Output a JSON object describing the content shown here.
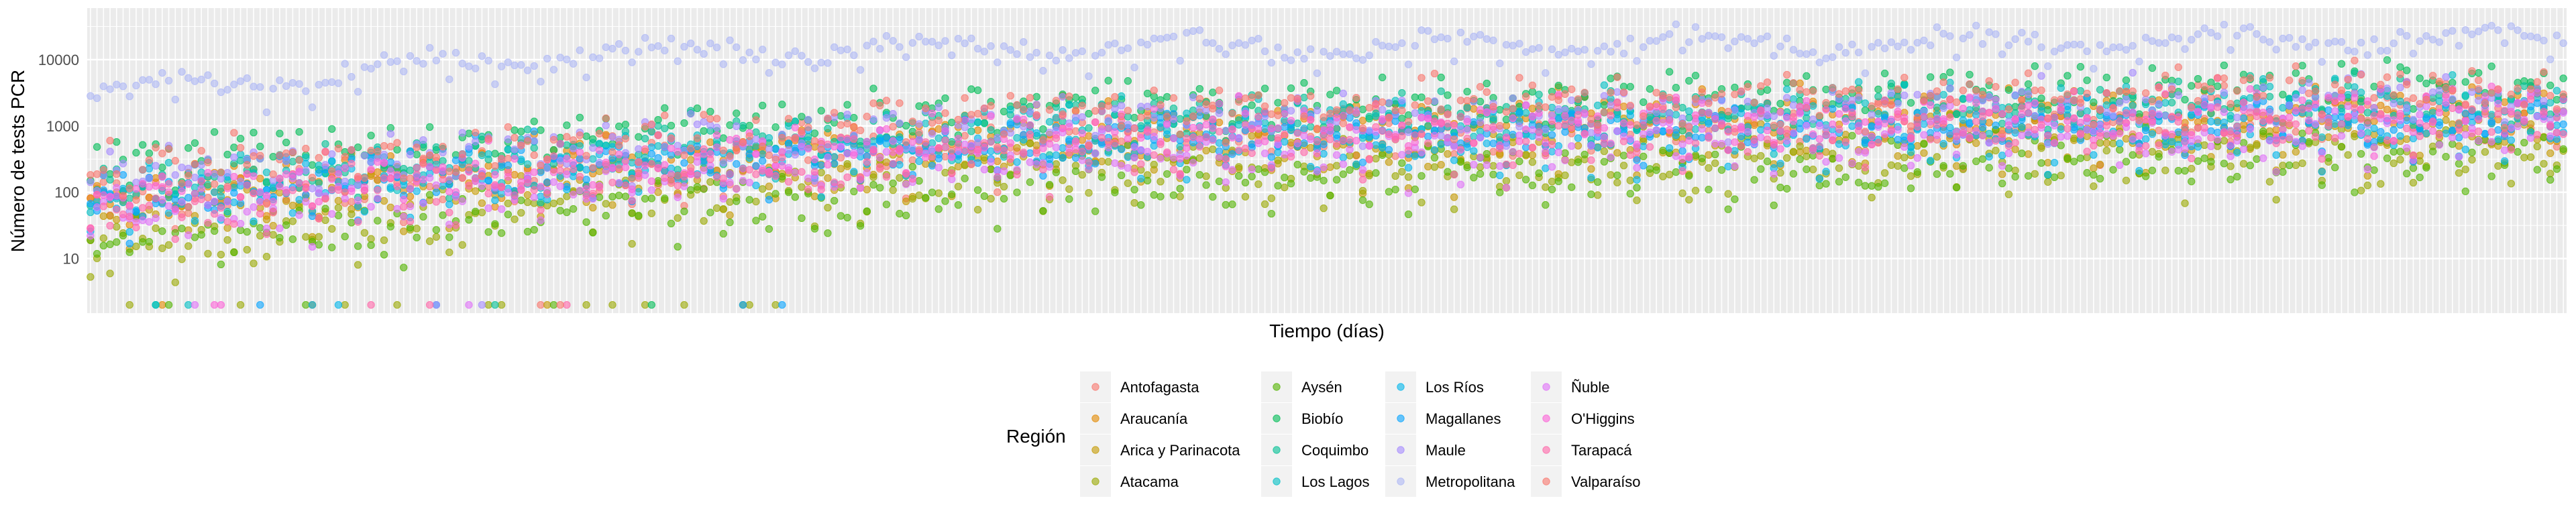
{
  "chart_data": {
    "type": "scatter",
    "title": "",
    "xlabel": "Tiempo (días)",
    "ylabel": "Número de tests PCR",
    "yscale": "log10",
    "ylim": [
      1.5,
      60000
    ],
    "yticks": [
      10,
      100,
      1000,
      10000
    ],
    "ytick_labels": [
      "10",
      "100",
      "1000",
      "10000"
    ],
    "x_tick_labels_visible": false,
    "n_days": 380,
    "grid": true,
    "legend_title": "Región",
    "legend_position": "bottom",
    "series": [
      {
        "name": "Antofagasta",
        "color": "#F8766D",
        "start": 80,
        "end": 2000,
        "ramp": 0.45,
        "spread": 0.28,
        "drops": 1
      },
      {
        "name": "Araucanía",
        "color": "#E38900",
        "start": 110,
        "end": 2300,
        "ramp": 0.4,
        "spread": 0.26,
        "drops": 2
      },
      {
        "name": "Arica y Parinacota",
        "color": "#C49A00",
        "start": 60,
        "end": 900,
        "ramp": 0.45,
        "spread": 0.26,
        "drops": 1
      },
      {
        "name": "Atacama",
        "color": "#99A800",
        "start": 15,
        "end": 500,
        "ramp": 0.35,
        "spread": 0.32,
        "drops": 14
      },
      {
        "name": "Aysén",
        "color": "#53B400",
        "start": 20,
        "end": 400,
        "ramp": 0.4,
        "spread": 0.3,
        "drops": 3
      },
      {
        "name": "Biobío",
        "color": "#00BC56",
        "start": 300,
        "end": 5000,
        "ramp": 0.4,
        "spread": 0.22,
        "drops": 1
      },
      {
        "name": "Coquimbo",
        "color": "#00C094",
        "start": 150,
        "end": 3000,
        "ramp": 0.4,
        "spread": 0.24,
        "drops": 2
      },
      {
        "name": "Los Lagos",
        "color": "#00BFC4",
        "start": 120,
        "end": 2800,
        "ramp": 0.4,
        "spread": 0.26,
        "drops": 2
      },
      {
        "name": "Los Ríos",
        "color": "#00B6EB",
        "start": 80,
        "end": 1100,
        "ramp": 0.4,
        "spread": 0.26,
        "drops": 3
      },
      {
        "name": "Magallanes",
        "color": "#06A4FF",
        "start": 100,
        "end": 1500,
        "ramp": 0.4,
        "spread": 0.28,
        "drops": 3
      },
      {
        "name": "Maule",
        "color": "#A58AFF",
        "start": 200,
        "end": 3000,
        "ramp": 0.4,
        "spread": 0.24,
        "drops": 2
      },
      {
        "name": "Metropolitana",
        "color": "#ADB7F5",
        "start": 3000,
        "end": 22000,
        "ramp": 0.2,
        "spread": 0.14,
        "drops": 0
      },
      {
        "name": "Ñuble",
        "color": "#DF70F8",
        "start": 50,
        "end": 1100,
        "ramp": 0.4,
        "spread": 0.28,
        "drops": 2
      },
      {
        "name": "O'Higgins",
        "color": "#FB61D7",
        "start": 100,
        "end": 2200,
        "ramp": 0.4,
        "spread": 0.26,
        "drops": 2
      },
      {
        "name": "Tarapacá",
        "color": "#FF66A8",
        "start": 60,
        "end": 1500,
        "ramp": 0.45,
        "spread": 0.28,
        "drops": 3
      },
      {
        "name": "Valparaíso",
        "color": "#F8766D",
        "start": 200,
        "end": 4500,
        "ramp": 0.4,
        "spread": 0.24,
        "drops": 1
      }
    ],
    "legend_labels": [
      "Antofagasta",
      "Araucanía",
      "Arica y Parinacota",
      "Atacama",
      "Aysén",
      "Biobío",
      "Coquimbo",
      "Los Lagos",
      "Los Ríos",
      "Magallanes",
      "Maule",
      "Metropolitana",
      "Ñuble",
      "O'Higgins",
      "Tarapacá",
      "Valparaíso"
    ],
    "legend_colors": [
      "#F8766D",
      "#E38900",
      "#C49A00",
      "#99A800",
      "#53B400",
      "#00BC56",
      "#00C094",
      "#00BFC4",
      "#00B6EB",
      "#06A4FF",
      "#A58AFF",
      "#ADB7F5",
      "#DF70F8",
      "#FB61D7",
      "#FF66A8",
      "#F8766D"
    ]
  }
}
